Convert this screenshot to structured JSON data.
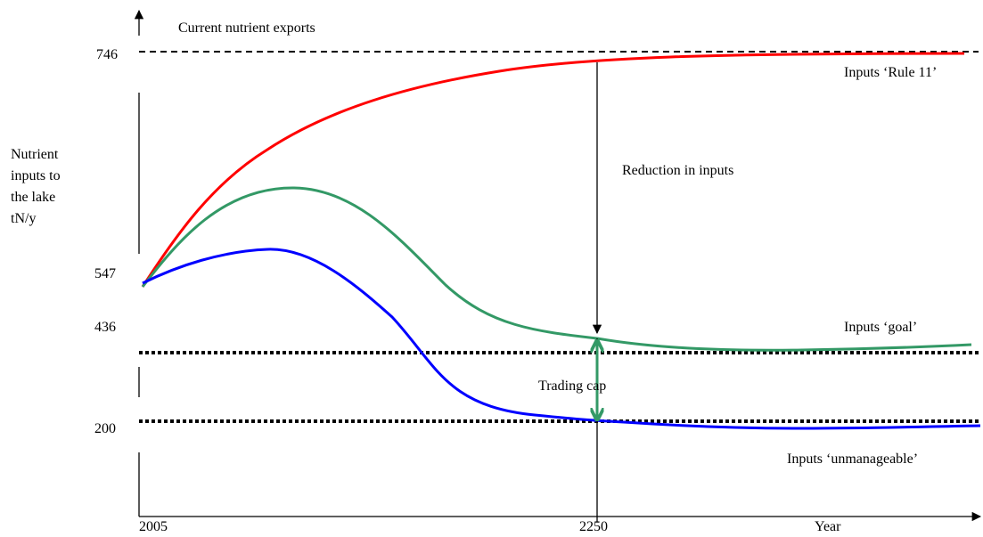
{
  "chart_data": {
    "type": "line",
    "ylabel_lines": [
      "Nutrient",
      "inputs to",
      "the lake",
      "tN/y"
    ],
    "xlabel": "Year",
    "x_ticks": [
      "2005",
      "2250"
    ],
    "y_ticks": [
      "746",
      "547",
      "436",
      "200"
    ],
    "reference_lines": [
      {
        "label": "Current nutrient exports",
        "value": 746,
        "style": "dashed"
      },
      {
        "label": "",
        "value": 390,
        "style": "dotted"
      },
      {
        "label": "",
        "value": 200,
        "style": "dotted"
      }
    ],
    "series": [
      {
        "name": "Inputs ‘Rule 11’",
        "color": "#ff0000",
        "points": [
          [
            0,
            520
          ],
          [
            0.1,
            612
          ],
          [
            0.2,
            668
          ],
          [
            0.3,
            703
          ],
          [
            0.45,
            728
          ],
          [
            0.6,
            740
          ],
          [
            0.8,
            746
          ],
          [
            1.0,
            746
          ]
        ]
      },
      {
        "name": "Inputs ‘goal’",
        "color": "#339966",
        "points": [
          [
            0,
            520
          ],
          [
            0.1,
            585
          ],
          [
            0.18,
            600
          ],
          [
            0.3,
            540
          ],
          [
            0.45,
            455
          ],
          [
            0.55,
            420
          ],
          [
            0.65,
            395
          ],
          [
            0.8,
            388
          ],
          [
            1.0,
            398
          ]
        ]
      },
      {
        "name": "Inputs ‘unmanageable’",
        "color": "#0000ff",
        "points": [
          [
            0,
            520
          ],
          [
            0.08,
            548
          ],
          [
            0.15,
            560
          ],
          [
            0.2,
            545
          ],
          [
            0.3,
            460
          ],
          [
            0.4,
            280
          ],
          [
            0.55,
            210
          ],
          [
            0.7,
            190
          ],
          [
            0.85,
            190
          ],
          [
            1.0,
            196
          ]
        ]
      }
    ],
    "annotations": [
      "Reduction in inputs",
      "Trading cap"
    ]
  }
}
